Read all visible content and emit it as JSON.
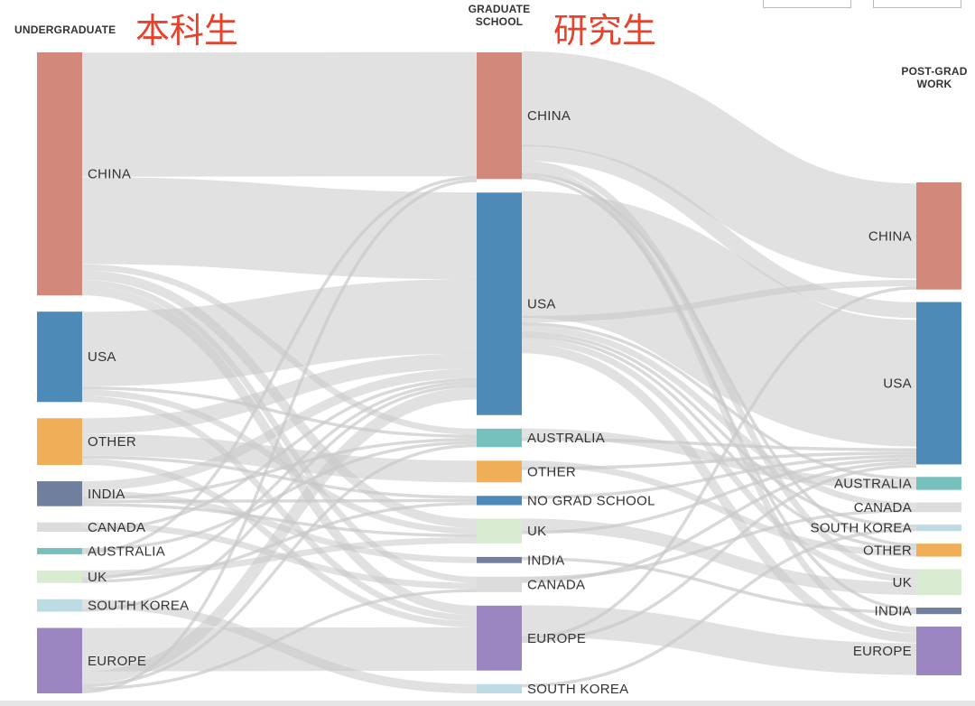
{
  "titles": {
    "undergraduate": "UNDERGRADUATE",
    "undergraduate_cn": "本科生",
    "graduate_line1": "GRADUATE",
    "graduate_line2": "SCHOOL",
    "graduate_cn": "研究生",
    "postgrad_line1": "POST-GRAD",
    "postgrad_line2": "WORK"
  },
  "chart_data": {
    "type": "sankey",
    "colors": {
      "CHINA": "#d2897b",
      "USA": "#4d8ab8",
      "OTHER": "#efae57",
      "INDIA": "#717f9e",
      "CANADA": "#dcdcdc",
      "AUSTRALIA": "#76c1bd",
      "UK": "#d9ebd0",
      "SOUTH KOREA": "#bcdbe3",
      "EUROPE": "#9b86c1",
      "NO GRAD SCHOOL": "#4d8ab8",
      "link": "#c9c9c9"
    },
    "columns": [
      {
        "name": "UNDERGRADUATE",
        "nodes": [
          {
            "label": "CHINA",
            "value": 78
          },
          {
            "label": "USA",
            "value": 29
          },
          {
            "label": "OTHER",
            "value": 15
          },
          {
            "label": "INDIA",
            "value": 8
          },
          {
            "label": "CANADA",
            "value": 3
          },
          {
            "label": "AUSTRALIA",
            "value": 2
          },
          {
            "label": "UK",
            "value": 4
          },
          {
            "label": "SOUTH KOREA",
            "value": 4
          },
          {
            "label": "EUROPE",
            "value": 21
          }
        ]
      },
      {
        "name": "GRADUATE SCHOOL",
        "nodes": [
          {
            "label": "CHINA",
            "value": 41
          },
          {
            "label": "USA",
            "value": 72
          },
          {
            "label": "AUSTRALIA",
            "value": 6
          },
          {
            "label": "OTHER",
            "value": 7
          },
          {
            "label": "NO GRAD SCHOOL",
            "value": 3
          },
          {
            "label": "UK",
            "value": 8
          },
          {
            "label": "INDIA",
            "value": 2
          },
          {
            "label": "CANADA",
            "value": 5
          },
          {
            "label": "EUROPE",
            "value": 21
          },
          {
            "label": "SOUTH KOREA",
            "value": 3
          }
        ]
      },
      {
        "name": "POST-GRAD WORK",
        "nodes": [
          {
            "label": "CHINA",
            "value": 33
          },
          {
            "label": "USA",
            "value": 50
          },
          {
            "label": "AUSTRALIA",
            "value": 4
          },
          {
            "label": "CANADA",
            "value": 3
          },
          {
            "label": "SOUTH KOREA",
            "value": 2
          },
          {
            "label": "OTHER",
            "value": 4
          },
          {
            "label": "UK",
            "value": 8
          },
          {
            "label": "INDIA",
            "value": 2
          },
          {
            "label": "EUROPE",
            "value": 15
          }
        ]
      }
    ],
    "links_12": [
      {
        "source": "CHINA",
        "target": "CHINA",
        "value": 40
      },
      {
        "source": "CHINA",
        "target": "USA",
        "value": 28
      },
      {
        "source": "CHINA",
        "target": "AUSTRALIA",
        "value": 2
      },
      {
        "source": "CHINA",
        "target": "UK",
        "value": 3
      },
      {
        "source": "CHINA",
        "target": "CANADA",
        "value": 2
      },
      {
        "source": "CHINA",
        "target": "EUROPE",
        "value": 3
      },
      {
        "source": "USA",
        "target": "USA",
        "value": 24
      },
      {
        "source": "USA",
        "target": "AUSTRALIA",
        "value": 1
      },
      {
        "source": "USA",
        "target": "UK",
        "value": 2
      },
      {
        "source": "USA",
        "target": "EUROPE",
        "value": 2
      },
      {
        "source": "OTHER",
        "target": "USA",
        "value": 5
      },
      {
        "source": "OTHER",
        "target": "OTHER",
        "value": 7
      },
      {
        "source": "OTHER",
        "target": "NO GRAD SCHOOL",
        "value": 1
      },
      {
        "source": "OTHER",
        "target": "EUROPE",
        "value": 2
      },
      {
        "source": "INDIA",
        "target": "USA",
        "value": 3
      },
      {
        "source": "INDIA",
        "target": "INDIA",
        "value": 2
      },
      {
        "source": "INDIA",
        "target": "AUSTRALIA",
        "value": 1
      },
      {
        "source": "INDIA",
        "target": "NO GRAD SCHOOL",
        "value": 1
      },
      {
        "source": "INDIA",
        "target": "UK",
        "value": 1
      },
      {
        "source": "CANADA",
        "target": "CANADA",
        "value": 2
      },
      {
        "source": "CANADA",
        "target": "USA",
        "value": 1
      },
      {
        "source": "AUSTRALIA",
        "target": "AUSTRALIA",
        "value": 1
      },
      {
        "source": "AUSTRALIA",
        "target": "CHINA",
        "value": 1
      },
      {
        "source": "UK",
        "target": "UK",
        "value": 2
      },
      {
        "source": "UK",
        "target": "USA",
        "value": 1
      },
      {
        "source": "UK",
        "target": "NO GRAD SCHOOL",
        "value": 1
      },
      {
        "source": "SOUTH KOREA",
        "target": "SOUTH KOREA",
        "value": 3
      },
      {
        "source": "SOUTH KOREA",
        "target": "USA",
        "value": 1
      },
      {
        "source": "EUROPE",
        "target": "EUROPE",
        "value": 14
      },
      {
        "source": "EUROPE",
        "target": "USA",
        "value": 4
      },
      {
        "source": "EUROPE",
        "target": "AUSTRALIA",
        "value": 1
      },
      {
        "source": "EUROPE",
        "target": "CANADA",
        "value": 1
      },
      {
        "source": "EUROPE",
        "target": "CHINA",
        "value": 1
      }
    ],
    "links_23": [
      {
        "source": "CHINA",
        "target": "CHINA",
        "value": 30
      },
      {
        "source": "CHINA",
        "target": "USA",
        "value": 5
      },
      {
        "source": "CHINA",
        "target": "UK",
        "value": 2
      },
      {
        "source": "CHINA",
        "target": "EUROPE",
        "value": 2
      },
      {
        "source": "CHINA",
        "target": "OTHER",
        "value": 1
      },
      {
        "source": "CHINA",
        "target": "INDIA",
        "value": 1
      },
      {
        "source": "USA",
        "target": "USA",
        "value": 40
      },
      {
        "source": "USA",
        "target": "CHINA",
        "value": 2
      },
      {
        "source": "USA",
        "target": "AUSTRALIA",
        "value": 1
      },
      {
        "source": "USA",
        "target": "CANADA",
        "value": 2
      },
      {
        "source": "USA",
        "target": "SOUTH KOREA",
        "value": 1
      },
      {
        "source": "USA",
        "target": "OTHER",
        "value": 1
      },
      {
        "source": "USA",
        "target": "UK",
        "value": 2
      },
      {
        "source": "USA",
        "target": "EUROPE",
        "value": 3
      },
      {
        "source": "AUSTRALIA",
        "target": "AUSTRALIA",
        "value": 3
      },
      {
        "source": "AUSTRALIA",
        "target": "USA",
        "value": 1
      },
      {
        "source": "OTHER",
        "target": "OTHER",
        "value": 2
      },
      {
        "source": "OTHER",
        "target": "USA",
        "value": 1
      },
      {
        "source": "NO GRAD SCHOOL",
        "target": "USA",
        "value": 1
      },
      {
        "source": "UK",
        "target": "UK",
        "value": 4
      },
      {
        "source": "UK",
        "target": "USA",
        "value": 1
      },
      {
        "source": "INDIA",
        "target": "INDIA",
        "value": 1
      },
      {
        "source": "CANADA",
        "target": "CANADA",
        "value": 1
      },
      {
        "source": "CANADA",
        "target": "USA",
        "value": 1
      },
      {
        "source": "EUROPE",
        "target": "EUROPE",
        "value": 10
      },
      {
        "source": "EUROPE",
        "target": "CHINA",
        "value": 1
      },
      {
        "source": "EUROPE",
        "target": "USA",
        "value": 1
      },
      {
        "source": "SOUTH KOREA",
        "target": "SOUTH KOREA",
        "value": 1
      }
    ]
  }
}
